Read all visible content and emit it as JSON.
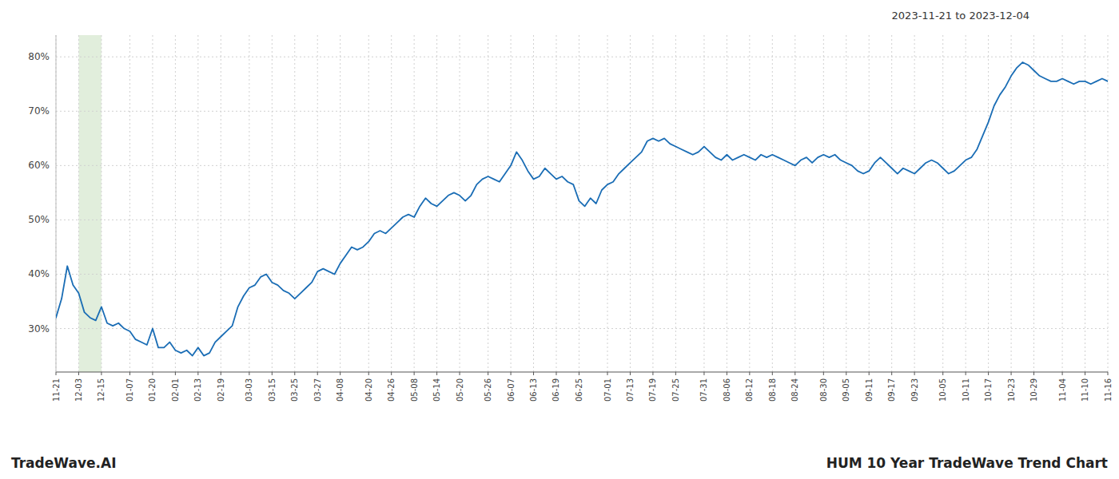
{
  "chart_data": {
    "type": "line",
    "title": "HUM 10 Year TradeWave Trend Chart",
    "subtitle": "2023-11-21 to 2023-12-04",
    "annotations": [
      "TradeWave.AI"
    ],
    "color": "#1a6db5",
    "grid": true,
    "highlight": {
      "start": "12-03",
      "end": "12-15",
      "color": "#d9ead3"
    },
    "ylim": [
      22,
      84
    ],
    "yticks": [
      {
        "value": 30,
        "label": "30%"
      },
      {
        "value": 40,
        "label": "40%"
      },
      {
        "value": 50,
        "label": "50%"
      },
      {
        "value": 60,
        "label": "60%"
      },
      {
        "value": 70,
        "label": "70%"
      },
      {
        "value": 80,
        "label": "80%"
      }
    ],
    "categories": [
      "11-21",
      null,
      null,
      null,
      "12-03",
      null,
      null,
      null,
      "12-15",
      null,
      null,
      null,
      null,
      "01-07",
      null,
      null,
      null,
      "01-20",
      null,
      null,
      null,
      "02-01",
      null,
      null,
      null,
      "02-13",
      null,
      null,
      null,
      "02-19",
      null,
      null,
      null,
      null,
      "03-03",
      null,
      null,
      null,
      "03-15",
      null,
      null,
      null,
      "03-25",
      null,
      null,
      null,
      "03-27",
      null,
      null,
      null,
      "04-08",
      null,
      null,
      null,
      null,
      "04-20",
      null,
      null,
      null,
      "04-26",
      null,
      null,
      null,
      "05-08",
      null,
      null,
      null,
      "05-14",
      null,
      null,
      null,
      "05-20",
      null,
      null,
      null,
      null,
      "05-26",
      null,
      null,
      null,
      "06-07",
      null,
      null,
      null,
      "06-13",
      null,
      null,
      null,
      "06-19",
      null,
      null,
      null,
      "06-25",
      null,
      null,
      null,
      null,
      "07-01",
      null,
      null,
      null,
      "07-13",
      null,
      null,
      null,
      "07-19",
      null,
      null,
      null,
      "07-25",
      null,
      null,
      null,
      null,
      "07-31",
      null,
      null,
      null,
      "08-06",
      null,
      null,
      null,
      "08-12",
      null,
      null,
      null,
      "08-18",
      null,
      null,
      null,
      "08-24",
      null,
      null,
      null,
      null,
      "08-30",
      null,
      null,
      null,
      "09-05",
      null,
      null,
      null,
      "09-11",
      null,
      null,
      null,
      "09-17",
      null,
      null,
      null,
      "09-23",
      null,
      null,
      null,
      null,
      "10-05",
      null,
      null,
      null,
      "10-11",
      null,
      null,
      null,
      "10-17",
      null,
      null,
      null,
      "10-23",
      null,
      null,
      null,
      "10-29",
      null,
      null,
      null,
      null,
      "11-04",
      null,
      null,
      null,
      "11-10",
      null,
      null,
      null,
      "11-16"
    ],
    "values": [
      32.0,
      35.5,
      41.5,
      38.0,
      36.5,
      33.0,
      32.0,
      31.5,
      34.0,
      31.0,
      30.5,
      31.0,
      30.0,
      29.5,
      28.0,
      27.5,
      27.0,
      30.0,
      26.5,
      26.5,
      27.5,
      26.0,
      25.5,
      26.0,
      25.0,
      26.5,
      25.0,
      25.5,
      27.5,
      28.5,
      29.5,
      30.5,
      34.0,
      36.0,
      37.5,
      38.0,
      39.5,
      40.0,
      38.5,
      38.0,
      37.0,
      36.5,
      35.5,
      36.5,
      37.5,
      38.5,
      40.5,
      41.0,
      40.5,
      40.0,
      42.0,
      43.5,
      45.0,
      44.5,
      45.0,
      46.0,
      47.5,
      48.0,
      47.5,
      48.5,
      49.5,
      50.5,
      51.0,
      50.5,
      52.5,
      54.0,
      53.0,
      52.5,
      53.5,
      54.5,
      55.0,
      54.5,
      53.5,
      54.5,
      56.5,
      57.5,
      58.0,
      57.5,
      57.0,
      58.5,
      60.0,
      62.5,
      61.0,
      59.0,
      57.5,
      58.0,
      59.5,
      58.5,
      57.5,
      58.0,
      57.0,
      56.5,
      53.5,
      52.5,
      54.0,
      53.0,
      55.5,
      56.5,
      57.0,
      58.5,
      59.5,
      60.5,
      61.5,
      62.5,
      64.5,
      65.0,
      64.5,
      65.0,
      64.0,
      63.5,
      63.0,
      62.5,
      62.0,
      62.5,
      63.5,
      62.5,
      61.5,
      61.0,
      62.0,
      61.0,
      61.5,
      62.0,
      61.5,
      61.0,
      62.0,
      61.5,
      62.0,
      61.5,
      61.0,
      60.5,
      60.0,
      61.0,
      61.5,
      60.5,
      61.5,
      62.0,
      61.5,
      62.0,
      61.0,
      60.5,
      60.0,
      59.0,
      58.5,
      59.0,
      60.5,
      61.5,
      60.5,
      59.5,
      58.5,
      59.5,
      59.0,
      58.5,
      59.5,
      60.5,
      61.0,
      60.5,
      59.5,
      58.5,
      59.0,
      60.0,
      61.0,
      61.5,
      63.0,
      65.5,
      68.0,
      71.0,
      73.0,
      74.5,
      76.5,
      78.0,
      79.0,
      78.5,
      77.5,
      76.5,
      76.0,
      75.5,
      75.5,
      76.0,
      75.5,
      75.0,
      75.5,
      75.5,
      75.0,
      75.5,
      76.0,
      75.5
    ]
  }
}
